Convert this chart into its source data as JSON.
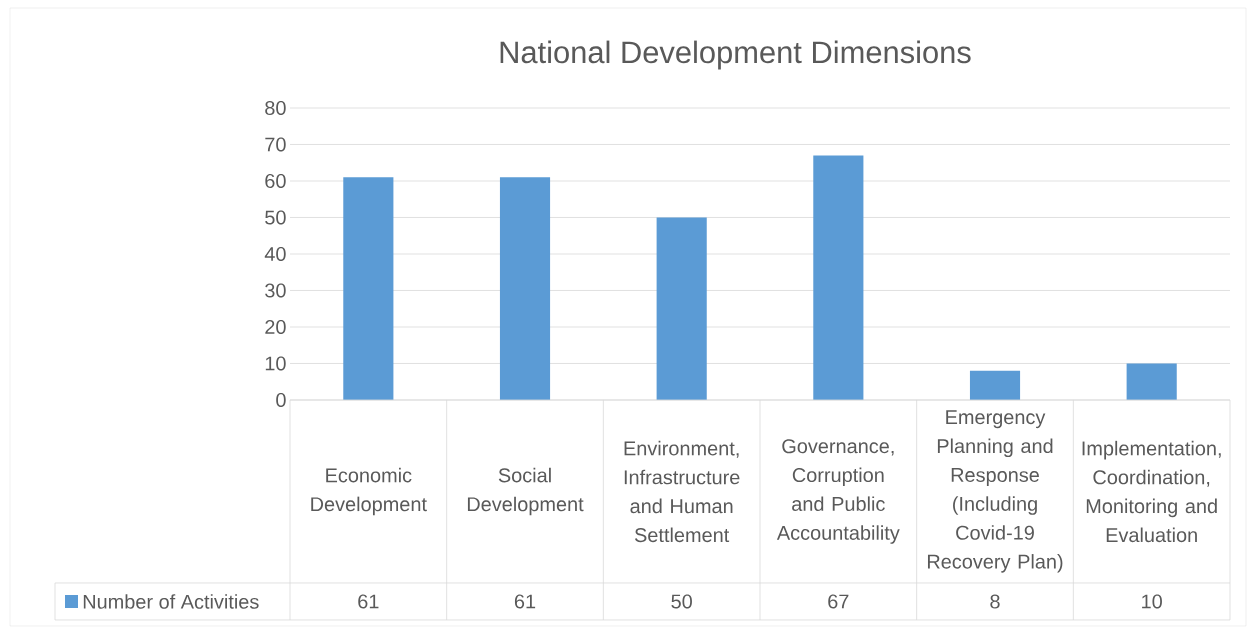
{
  "chart_data": {
    "type": "bar",
    "title": "National Development Dimensions",
    "categories": [
      "Economic Development",
      "Social Development",
      "Environment, Infrastructure and Human Settlement",
      "Governance, Corruption and Public Accountability",
      "Emergency Planning and Response (Including Covid-19 Recovery Plan)",
      "Implementation, Coordination, Monitoring and Evaluation"
    ],
    "series": [
      {
        "name": "Number of Activities",
        "color": "#5b9bd5",
        "values": [
          61,
          61,
          50,
          67,
          8,
          10
        ]
      }
    ],
    "ylim": [
      0,
      80
    ],
    "yticks": [
      0,
      10,
      20,
      30,
      40,
      50,
      60,
      70,
      80
    ],
    "grid": "y",
    "legend": "bottom",
    "data_labels": true
  }
}
